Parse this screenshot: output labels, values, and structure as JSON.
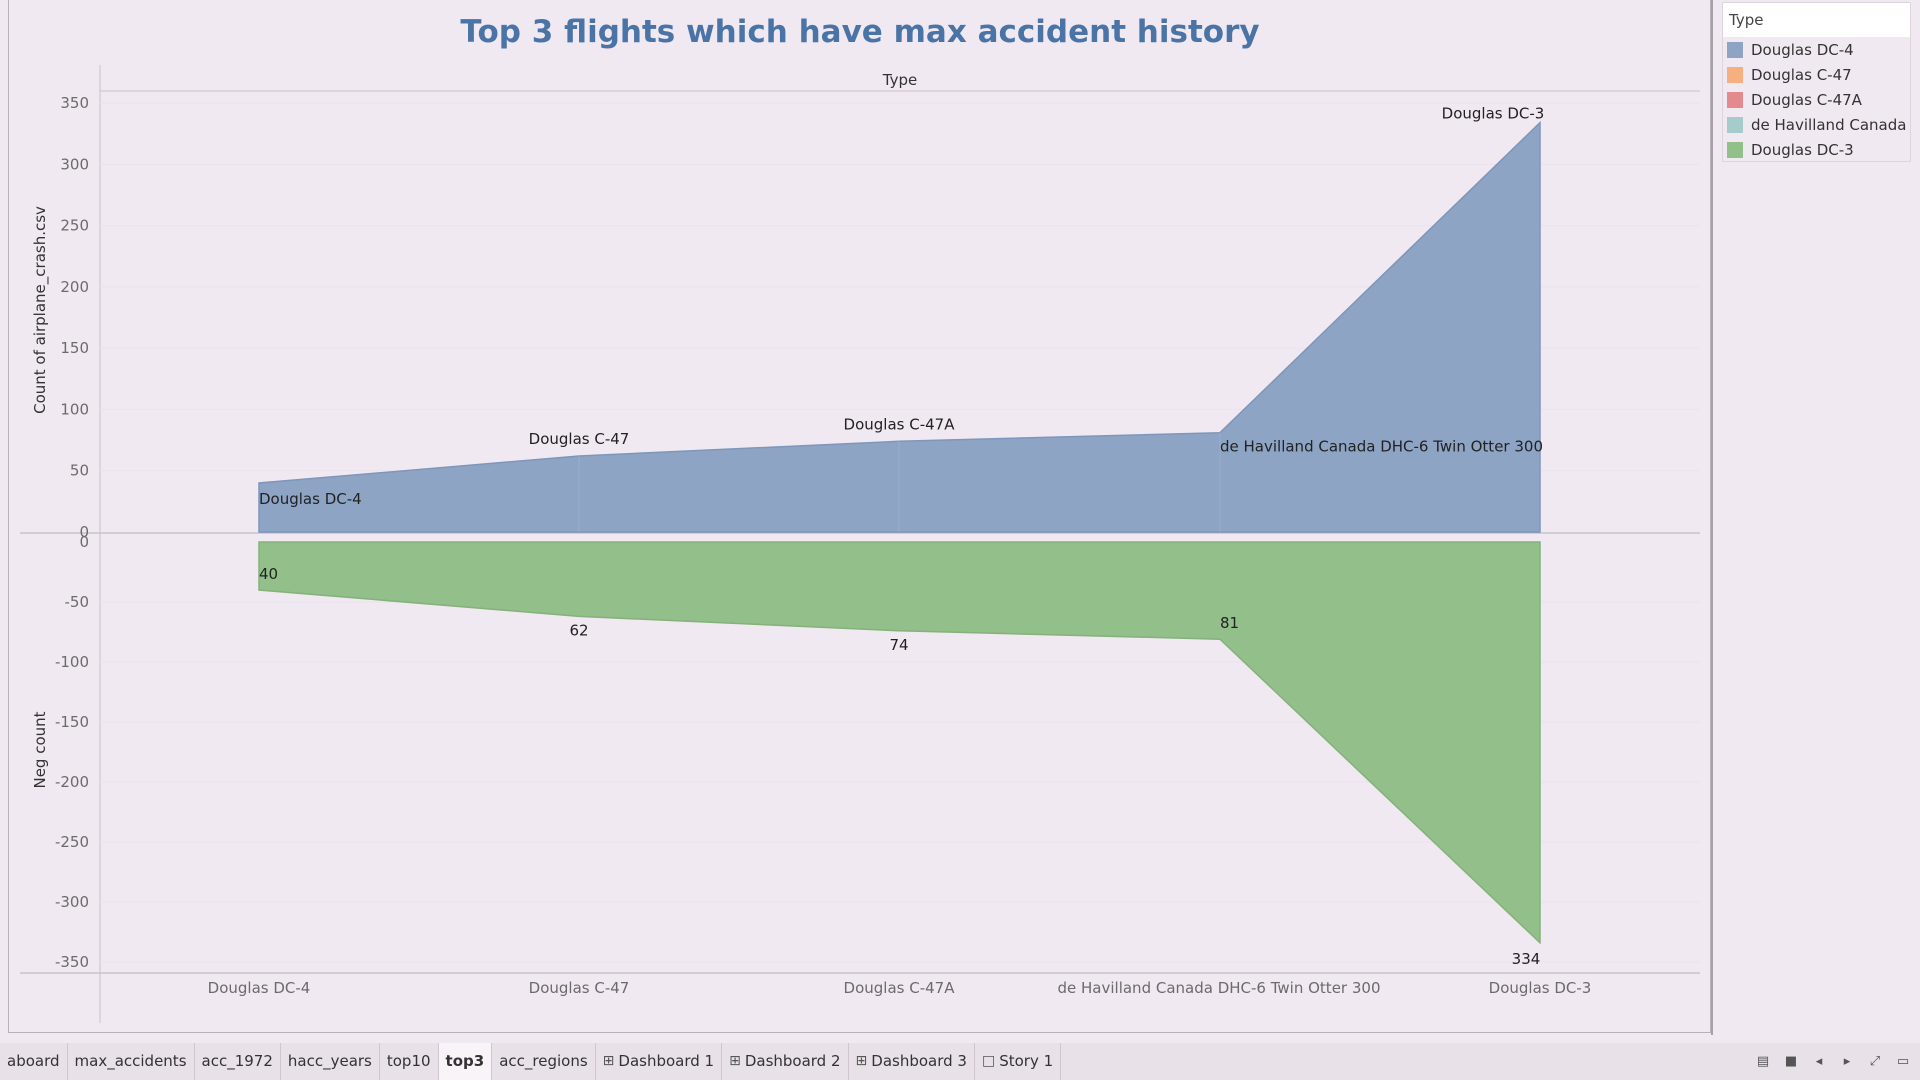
{
  "chart_data": {
    "type": "area",
    "title": "Top 3 flights which have max accident history",
    "top_header": "Type",
    "categories": [
      "Douglas DC-4",
      "Douglas C-47",
      "Douglas C-47A",
      "de Havilland Canada DHC-6 Twin Otter 300",
      "Douglas DC-3"
    ],
    "upper": {
      "ylabel": "Count of airplane_crash.csv",
      "ylim": [
        0,
        350
      ],
      "ticks": [
        350,
        300,
        250,
        200,
        150,
        100,
        50,
        0
      ],
      "values": [
        40,
        62,
        74,
        81,
        334
      ],
      "labels": [
        "Douglas DC-4",
        "Douglas C-47",
        "Douglas C-47A",
        "de Havilland Canada DHC-6 Twin Otter 300",
        "Douglas DC-3"
      ],
      "color": "#8da4c5"
    },
    "lower": {
      "ylabel": "Neg count",
      "ylim": [
        -350,
        0
      ],
      "ticks": [
        0,
        -50,
        -100,
        -150,
        -200,
        -250,
        -300,
        -350
      ],
      "values": [
        -40,
        -62,
        -74,
        -81,
        -334
      ],
      "labels": [
        "40",
        "62",
        "74",
        "81",
        "334"
      ],
      "color": "#93bf8a"
    },
    "grid": true,
    "legend_position": "right"
  },
  "legend": {
    "title": "Type",
    "items": [
      {
        "label": "Douglas DC-4",
        "color": "#8da4c5"
      },
      {
        "label": "Douglas C-47",
        "color": "#f6b07f"
      },
      {
        "label": "Douglas C-47A",
        "color": "#e48a8e"
      },
      {
        "label": "de Havilland Canada ..",
        "color": "#a6cbcb"
      },
      {
        "label": "Douglas DC-3",
        "color": "#93bf8a"
      }
    ]
  },
  "tabs": [
    {
      "label": "aboard",
      "icon": ""
    },
    {
      "label": "max_accidents",
      "icon": ""
    },
    {
      "label": "acc_1972",
      "icon": ""
    },
    {
      "label": "hacc_years",
      "icon": ""
    },
    {
      "label": "top10",
      "icon": ""
    },
    {
      "label": "top3",
      "icon": "",
      "active": true
    },
    {
      "label": "acc_regions",
      "icon": ""
    },
    {
      "label": "Dashboard 1",
      "icon": "dashboard-icon"
    },
    {
      "label": "Dashboard 2",
      "icon": "dashboard-icon"
    },
    {
      "label": "Dashboard 3",
      "icon": "dashboard-icon"
    },
    {
      "label": "Story 1",
      "icon": "story-icon"
    }
  ],
  "toolbar_icons": [
    "filmstrip-icon",
    "sheet-icon",
    "prev-icon",
    "next-icon",
    "fullscreen-icon",
    "presentation-icon"
  ]
}
